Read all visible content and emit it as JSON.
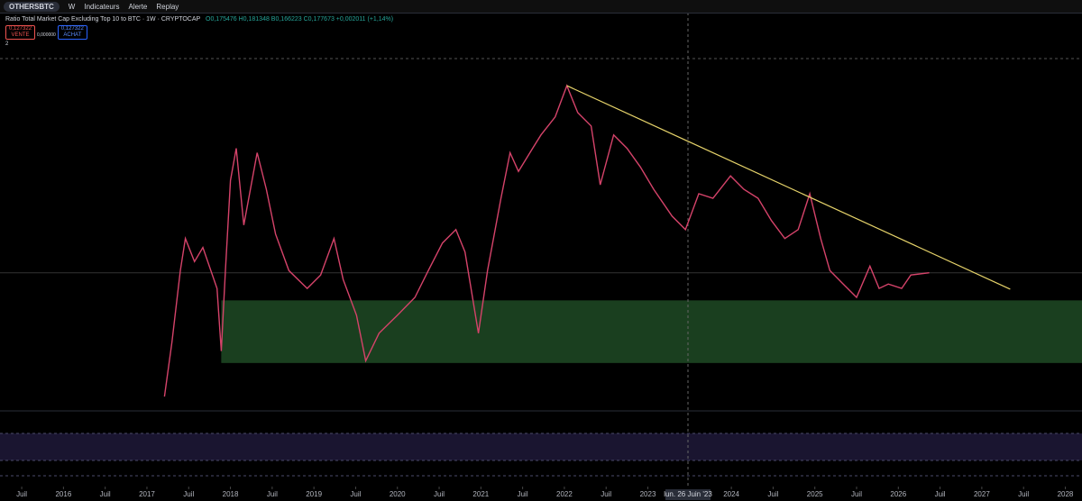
{
  "toolbar": {
    "symbol": "OTHERSBTC",
    "interval": "W",
    "indicators": "Indicateurs",
    "alert": "Alerte",
    "replay": "Replay"
  },
  "legend": {
    "title": "Ratio Total Market Cap Excluding Top 10 to BTC · 1W · CRYPTOCAP",
    "ohlc": "O0,175476 H0,181348 B0,166223 C0,177673 +0,002011 (+1,14%)",
    "sell_price": "0,127322",
    "sell_label": "VENTE",
    "spread": "0,000000",
    "buy_price": "0,127322",
    "buy_label": "ACHAT",
    "collapse": "2"
  },
  "crosshair_label": "lun. 26 Juin '23",
  "chart_data": {
    "type": "line",
    "title": "Ratio Total Market Cap Excluding Top 10 to BTC · 1W · CRYPTOCAP",
    "xlim": [
      2015.24,
      2028.2
    ],
    "ylim": [
      0,
      0.469
    ],
    "xticks": [
      {
        "value": 2015.5,
        "label": "Juil"
      },
      2016,
      {
        "value": 2016.5,
        "label": "Juil"
      },
      2017,
      {
        "value": 2017.5,
        "label": "Juil"
      },
      2018,
      {
        "value": 2018.5,
        "label": "Juil"
      },
      2019,
      {
        "value": 2019.5,
        "label": "Juil"
      },
      2020,
      {
        "value": 2020.5,
        "label": "Juil"
      },
      2021,
      {
        "value": 2021.5,
        "label": "Juil"
      },
      2022,
      {
        "value": 2022.5,
        "label": "Juil"
      },
      2023,
      2024,
      {
        "value": 2024.5,
        "label": "Juil"
      },
      2025,
      {
        "value": 2025.5,
        "label": "Juil"
      },
      2026,
      {
        "value": 2026.5,
        "label": "Juil"
      },
      2027,
      {
        "value": 2027.5,
        "label": "Juil"
      },
      2028
    ],
    "series": [
      {
        "name": "OTHERSBTC",
        "color": "#d5436a",
        "x": [
          2017.21,
          2017.3,
          2017.4,
          2017.46,
          2017.57,
          2017.67,
          2017.84,
          2017.89,
          2017.94,
          2018.0,
          2018.07,
          2018.16,
          2018.32,
          2018.43,
          2018.54,
          2018.7,
          2018.92,
          2019.08,
          2019.24,
          2019.35,
          2019.51,
          2019.62,
          2019.78,
          2020.0,
          2020.21,
          2020.37,
          2020.54,
          2020.7,
          2020.81,
          2020.97,
          2021.08,
          2021.24,
          2021.35,
          2021.45,
          2021.62,
          2021.72,
          2021.89,
          2022.03,
          2022.16,
          2022.32,
          2022.43,
          2022.59,
          2022.75,
          2022.91,
          2023.07,
          2023.29,
          2023.45,
          2023.61,
          2023.78,
          2023.99,
          2024.15,
          2024.32,
          2024.48,
          2024.64,
          2024.8,
          2024.94,
          2025.07,
          2025.18,
          2025.34,
          2025.5,
          2025.66,
          2025.77,
          2025.88,
          2026.04,
          2026.15,
          2026.37
        ],
        "values": [
          0.012,
          0.085,
          0.181,
          0.224,
          0.193,
          0.212,
          0.157,
          0.073,
          0.181,
          0.302,
          0.345,
          0.242,
          0.339,
          0.29,
          0.23,
          0.181,
          0.157,
          0.175,
          0.224,
          0.169,
          0.121,
          0.06,
          0.097,
          0.121,
          0.145,
          0.181,
          0.218,
          0.236,
          0.206,
          0.097,
          0.181,
          0.278,
          0.339,
          0.314,
          0.345,
          0.363,
          0.387,
          0.429,
          0.393,
          0.375,
          0.296,
          0.363,
          0.345,
          0.32,
          0.29,
          0.254,
          0.236,
          0.284,
          0.278,
          0.308,
          0.29,
          0.278,
          0.248,
          0.224,
          0.236,
          0.284,
          0.224,
          0.181,
          0.163,
          0.145,
          0.187,
          0.157,
          0.163,
          0.157,
          0.175,
          0.178
        ]
      }
    ],
    "trendline": {
      "color": "#e6d36a",
      "x": [
        2022.03,
        2027.34
      ],
      "values": [
        0.429,
        0.156
      ]
    },
    "zone": {
      "color": "#1f4a24",
      "x": [
        2017.89,
        2028.2
      ],
      "values": [
        0.057,
        0.141
      ]
    }
  }
}
